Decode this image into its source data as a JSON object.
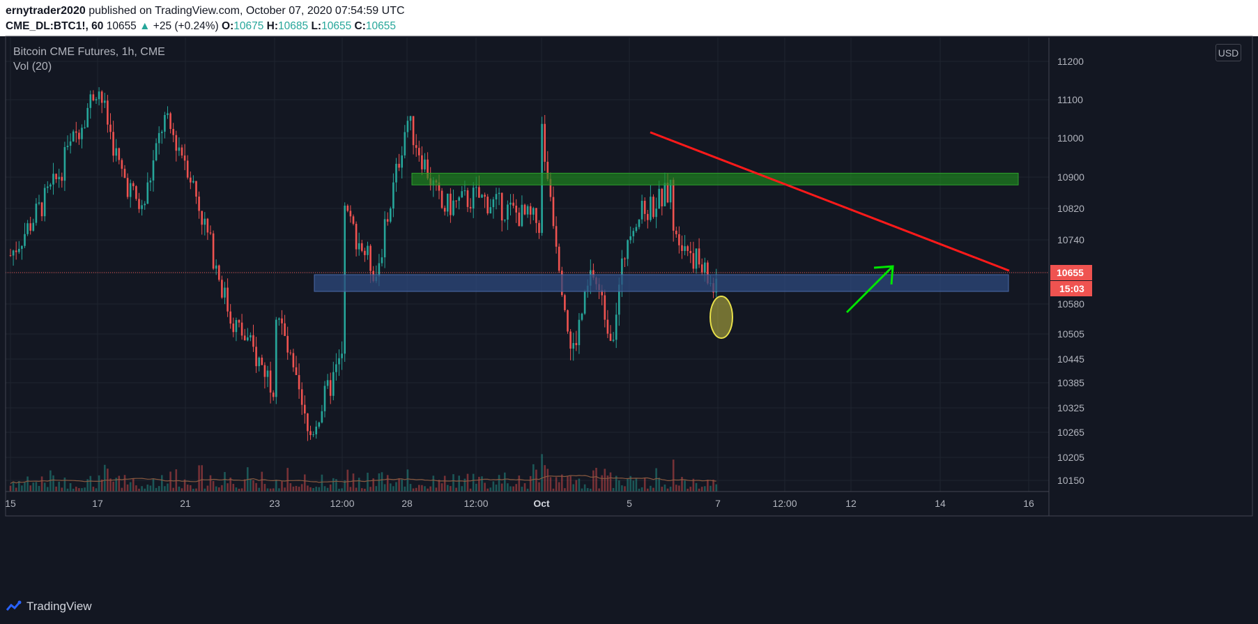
{
  "header": {
    "author": "ernytrader2020",
    "published": "published on TradingView.com, October 07, 2020 07:54:59 UTC",
    "symbol": "CME_DL:BTC1!, 60",
    "last": "10655",
    "change": "+25 (+0.24%)",
    "o_label": "O:",
    "o_value": "10675",
    "h_label": "H:",
    "h_value": "10685",
    "l_label": "L:",
    "l_value": "10655",
    "c_label": "C:",
    "c_value": "10655"
  },
  "legend": {
    "title": "Bitcoin CME Futures, 1h, CME",
    "volume": "Vol (20)"
  },
  "currency": "USD",
  "price_badge": {
    "value": "10655",
    "countdown": "15:03"
  },
  "brand": "TradingView",
  "colors": {
    "up": "#26a69a",
    "down": "#ef5350",
    "background": "#131722",
    "trendline": "#ff1a1a",
    "resistance_zone": "#1e7f1e",
    "support_zone": "#2e4a7d",
    "arrow": "#00e600",
    "highlight": "#e8e04a"
  },
  "chart_data": {
    "type": "candlestick",
    "title": "Bitcoin CME Futures, 1h, CME",
    "y_ticks": [
      11200,
      11100,
      11000,
      10900,
      10820,
      10740,
      10655,
      10580,
      10505,
      10445,
      10385,
      10325,
      10265,
      10205,
      10150
    ],
    "y_tick_labels": [
      "11200",
      "11100",
      "11000",
      "10900",
      "10820",
      "10740",
      "10580",
      "10505",
      "10445",
      "10385",
      "10325",
      "10265",
      "10205",
      "10150"
    ],
    "x_tick_labels": [
      "15",
      "17",
      "21",
      "23",
      "12:00",
      "28",
      "12:00",
      "Oct",
      "5",
      "7",
      "12:00",
      "12",
      "14",
      "16"
    ],
    "price_path": [
      {
        "t": "Sep 15",
        "price": 10700
      },
      {
        "t": "Sep 16",
        "price": 10880
      },
      {
        "t": "Sep 17",
        "price": 11140
      },
      {
        "t": "Sep 18",
        "price": 10920
      },
      {
        "t": "Sep 19",
        "price": 10810
      },
      {
        "t": "Sep 20",
        "price": 11050
      },
      {
        "t": "Sep 21",
        "price": 10950
      },
      {
        "t": "Sep 22",
        "price": 10550
      },
      {
        "t": "Sep 23",
        "price": 10380
      },
      {
        "t": "Sep 23",
        "price": 10590
      },
      {
        "t": "Sep 24",
        "price": 10250
      },
      {
        "t": "Sep 25",
        "price": 10450
      },
      {
        "t": "Sep 25",
        "price": 10820
      },
      {
        "t": "Sep 26",
        "price": 10650
      },
      {
        "t": "Sep 28",
        "price": 11050
      },
      {
        "t": "Sep 29",
        "price": 10820
      },
      {
        "t": "Sep 30",
        "price": 10850
      },
      {
        "t": "Oct 1",
        "price": 10780
      },
      {
        "t": "Oct 1",
        "price": 11030
      },
      {
        "t": "Oct 2",
        "price": 10450
      },
      {
        "t": "Oct 3",
        "price": 10660
      },
      {
        "t": "Oct 4",
        "price": 10500
      },
      {
        "t": "Oct 5",
        "price": 10780
      },
      {
        "t": "Oct 6",
        "price": 10870
      },
      {
        "t": "Oct 6",
        "price": 10780
      },
      {
        "t": "Oct 7",
        "price": 10600
      },
      {
        "t": "Oct 7",
        "price": 10655
      }
    ],
    "current_price": 10655,
    "annotations": {
      "resistance_zone": [
        10880,
        10910
      ],
      "support_zone": [
        10610,
        10650
      ],
      "descending_trendline": [
        {
          "t": "Oct 1",
          "price": 11015
        },
        {
          "t": "Oct 12",
          "price": 10660
        }
      ]
    }
  }
}
